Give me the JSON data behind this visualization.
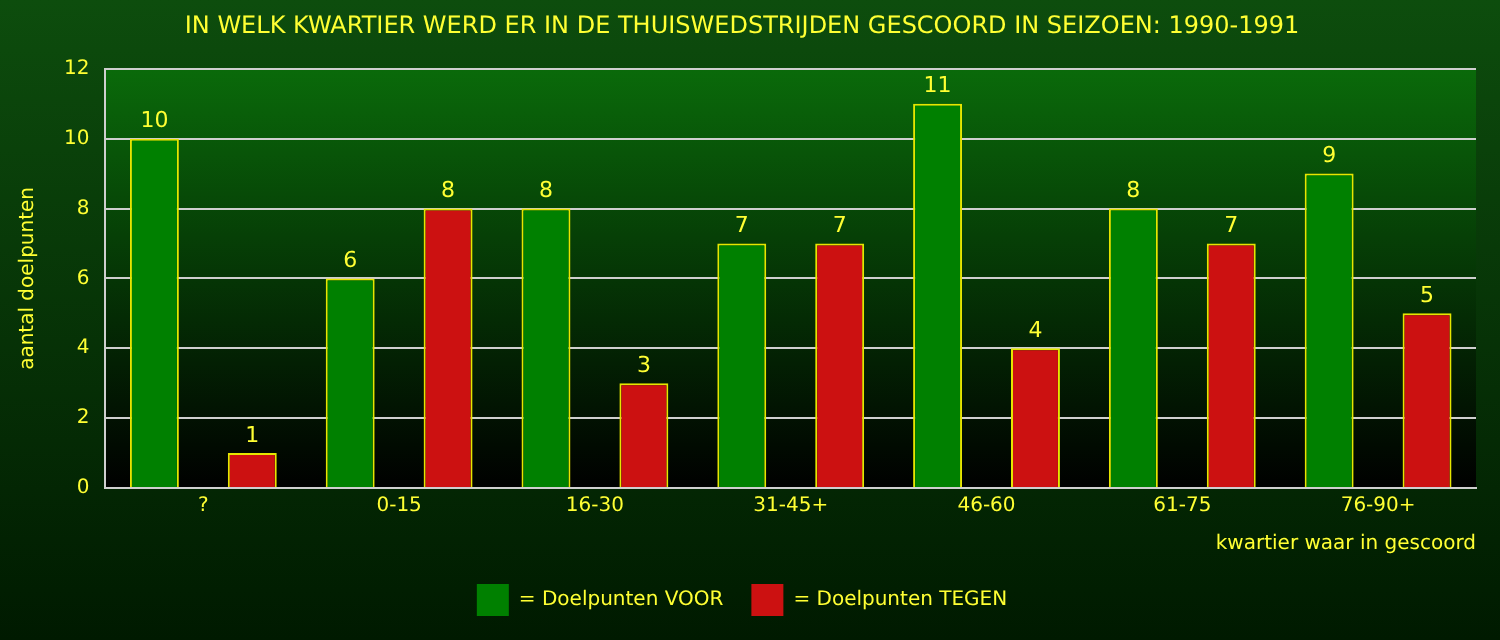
{
  "chart_data": {
    "type": "bar",
    "title": "IN WELK KWARTIER WERD ER IN DE THUISWEDSTRIJDEN GESCOORD IN SEIZOEN: 1990-1991",
    "xlabel": "kwartier waar in gescoord",
    "ylabel": "aantal doelpunten",
    "categories": [
      "?",
      "0-15",
      "16-30",
      "31-45+",
      "46-60",
      "61-75",
      "76-90+"
    ],
    "series": [
      {
        "name": "= Doelpunten VOOR",
        "color": "#008000",
        "values": [
          10,
          6,
          8,
          7,
          11,
          8,
          9
        ]
      },
      {
        "name": "= Doelpunten TEGEN",
        "color": "#cc1111",
        "values": [
          1,
          8,
          3,
          7,
          4,
          7,
          5
        ]
      }
    ],
    "ylim": [
      0,
      12
    ],
    "yticks": [
      0,
      2,
      4,
      6,
      8,
      10,
      12
    ],
    "grid": "y",
    "legend": "bottom",
    "data_labels": true
  }
}
